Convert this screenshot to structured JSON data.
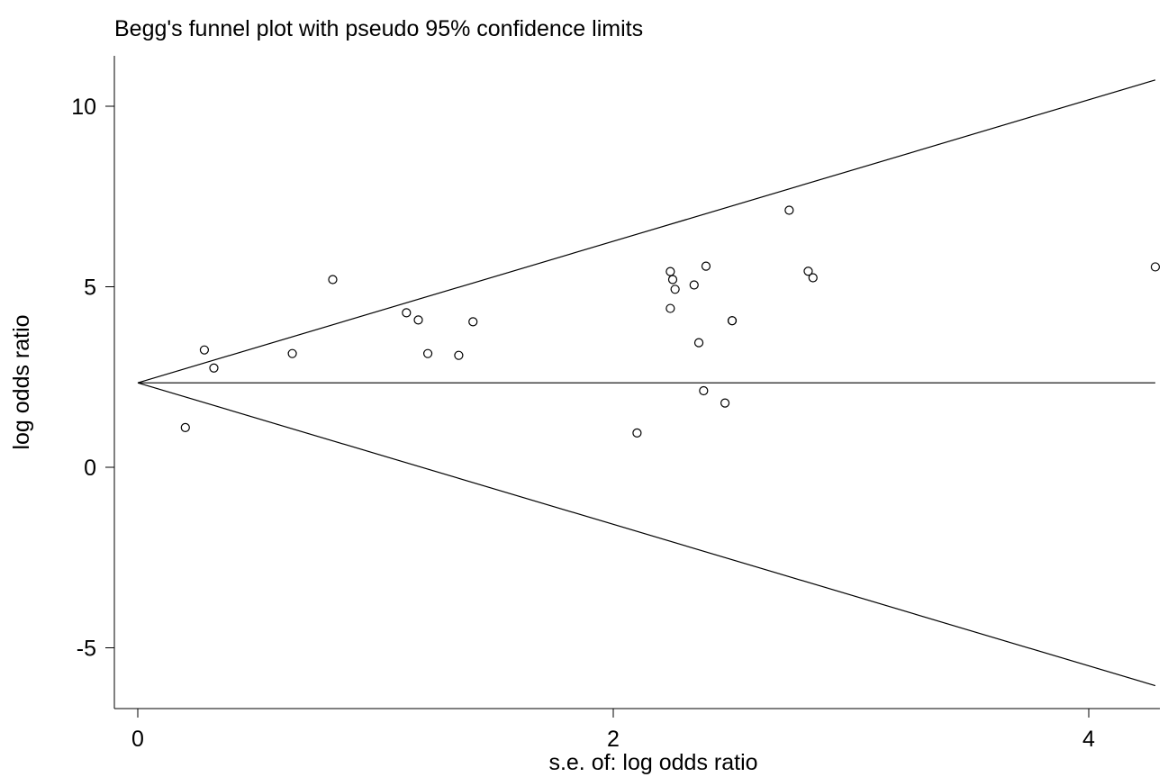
{
  "chart_data": {
    "type": "scatter",
    "title": "Begg's funnel plot with pseudo 95% confidence limits",
    "xlabel": "s.e. of: log odds ratio",
    "ylabel": "log odds ratio",
    "xlim": [
      -0.1,
      4.3
    ],
    "ylim": [
      -6.7,
      11.3
    ],
    "x_ticks": [
      {
        "value": 0,
        "label": "0"
      },
      {
        "value": 2,
        "label": "2"
      },
      {
        "value": 4,
        "label": "4"
      }
    ],
    "y_ticks": [
      {
        "value": 10,
        "label": "10"
      },
      {
        "value": 5,
        "label": "5"
      },
      {
        "value": 0,
        "label": "0"
      },
      {
        "value": -5,
        "label": "-5"
      }
    ],
    "pooled_estimate": 2.34,
    "confidence_z": 1.96,
    "se_max": 4.28,
    "points": [
      {
        "x": 0.2,
        "y": 1.1
      },
      {
        "x": 0.28,
        "y": 3.25
      },
      {
        "x": 0.32,
        "y": 2.75
      },
      {
        "x": 0.65,
        "y": 3.15
      },
      {
        "x": 0.82,
        "y": 5.2
      },
      {
        "x": 1.13,
        "y": 4.28
      },
      {
        "x": 1.18,
        "y": 4.08
      },
      {
        "x": 1.22,
        "y": 3.15
      },
      {
        "x": 1.35,
        "y": 3.1
      },
      {
        "x": 1.41,
        "y": 4.03
      },
      {
        "x": 2.1,
        "y": 0.95
      },
      {
        "x": 2.24,
        "y": 5.42
      },
      {
        "x": 2.24,
        "y": 4.4
      },
      {
        "x": 2.25,
        "y": 5.2
      },
      {
        "x": 2.26,
        "y": 4.93
      },
      {
        "x": 2.34,
        "y": 5.05
      },
      {
        "x": 2.36,
        "y": 3.45
      },
      {
        "x": 2.38,
        "y": 2.12
      },
      {
        "x": 2.39,
        "y": 5.57
      },
      {
        "x": 2.47,
        "y": 1.78
      },
      {
        "x": 2.5,
        "y": 4.06
      },
      {
        "x": 2.5,
        "y": 4.06
      },
      {
        "x": 2.74,
        "y": 7.12
      },
      {
        "x": 2.82,
        "y": 5.43
      },
      {
        "x": 2.84,
        "y": 5.25
      },
      {
        "x": 4.28,
        "y": 5.55
      }
    ]
  }
}
